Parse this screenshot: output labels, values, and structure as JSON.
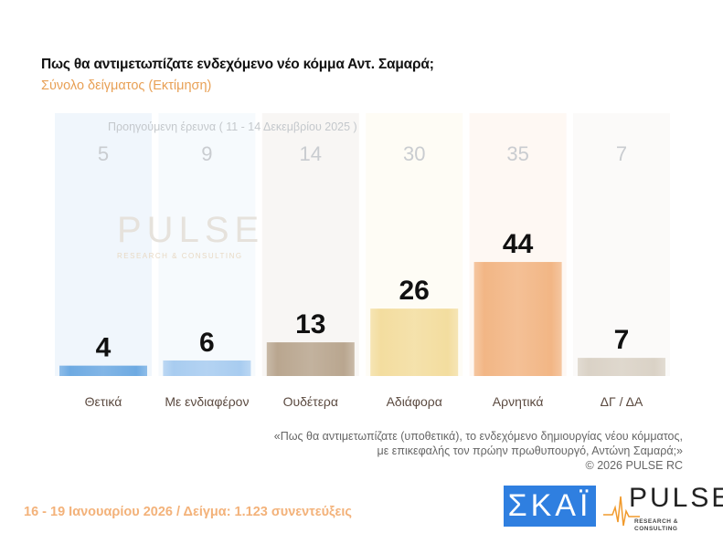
{
  "header": {
    "title": "Πως θα αντιμετωπίζατε ενδεχόμενο νέο κόμμα Αντ. Σαμαρά;",
    "subtitle": "Σύνολο δείγματος  (Εκτίμηση)"
  },
  "chart_data": {
    "type": "bar",
    "title": "Πως θα αντιμετωπίζατε ενδεχόμενο νέο κόμμα Αντ. Σαμαρά;",
    "subtitle": "Σύνολο δείγματος  (Εκτίμηση)",
    "categories": [
      "Θετικά",
      "Με ενδιαφέρον",
      "Ουδέτερα",
      "Αδιάφορα",
      "Αρνητικά",
      "ΔΓ / ΔΑ"
    ],
    "series": [
      {
        "name": "current",
        "values": [
          4,
          6,
          13,
          26,
          44,
          7
        ]
      },
      {
        "name": "Προηγούμενη έρευνα ( 11 - 14 Δεκεμβρίου 2025 )",
        "values": [
          5,
          9,
          14,
          30,
          35,
          7
        ]
      }
    ],
    "colors": [
      "#6eaae2",
      "#a8ccf0",
      "#b9a68f",
      "#f3dd9f",
      "#f2b685",
      "#dad2c6"
    ],
    "ylim": [
      0,
      100
    ],
    "grid": false
  },
  "prev_label": "Προηγούμενη έρευνα ( 11 - 14 Δεκεμβρίου 2025 )",
  "watermark": {
    "name": "PULSE",
    "sub": "RESEARCH & CONSULTING"
  },
  "note": {
    "line1": "«Πως θα αντιμετωπίζατε (υποθετικά), το ενδεχόμενο δημιουργίας νέου κόμματος,",
    "line2": "με επικεφαλής τον πρώην πρωθυπουργό, Αντώνη Σαμαρά;»",
    "copyright": "©  2026  PULSE RC"
  },
  "footer": "16 - 19 Ιανουαρίου 2026  /  Δείγμα:  1.123 συνεντεύξεις",
  "logos": {
    "skai": "ΣΚΑΪ",
    "pulse": "PULSE",
    "pulse_sub": "RESEARCH & CONSULTING"
  }
}
